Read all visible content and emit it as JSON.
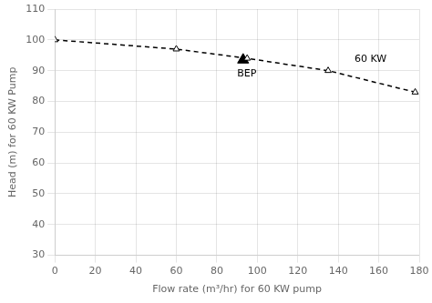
{
  "chart_data": {
    "type": "line",
    "x": [
      0,
      60,
      95,
      135,
      178
    ],
    "values": [
      100,
      97,
      94,
      90,
      83
    ],
    "color": "#000000",
    "marker": "triangle",
    "line_style": "dashed",
    "xlabel": "Flow rate (m³/hr) for 60 KW pump",
    "ylabel": "Head (m) for 60 KW Pump",
    "xlim": [
      0,
      180
    ],
    "ylim": [
      30,
      110
    ],
    "xticks": [
      0,
      20,
      40,
      60,
      80,
      100,
      120,
      140,
      160,
      180
    ],
    "yticks": [
      30,
      40,
      50,
      60,
      70,
      80,
      90,
      100,
      110
    ],
    "grid": true,
    "annotations": [
      {
        "text": "BEP",
        "x": 93,
        "y": 93.5,
        "marker": "triangle"
      },
      {
        "text": "60 KW",
        "x": 148,
        "y": 92
      }
    ]
  }
}
